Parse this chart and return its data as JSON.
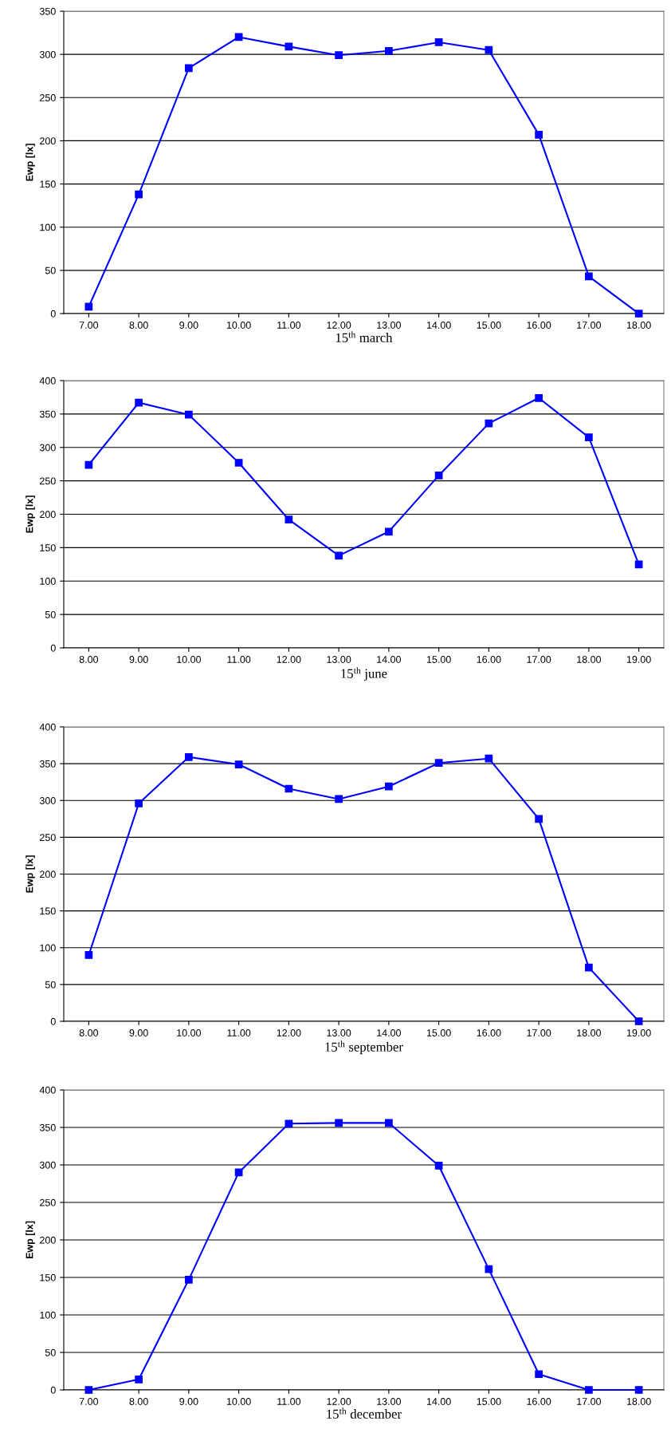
{
  "chart_data": [
    {
      "type": "line",
      "xlabel": "15$^{th}$ march",
      "ylabel": "Ewp [lx]",
      "categories": [
        "7.00",
        "8.00",
        "9.00",
        "10.00",
        "11.00",
        "12.00",
        "13.00",
        "14.00",
        "15.00",
        "16.00",
        "17.00",
        "18.00"
      ],
      "series": [
        {
          "color": "#0000ff",
          "values": [
            8,
            138,
            284,
            320,
            309,
            299,
            304,
            314,
            305,
            207,
            43,
            0
          ]
        }
      ],
      "ylim": [
        0,
        350
      ],
      "yticks": [
        0,
        50,
        100,
        150,
        200,
        250,
        300,
        350
      ],
      "grid": "y",
      "marker": "square",
      "line_style": "solid"
    },
    {
      "type": "line",
      "xlabel": "15$^{th}$ june",
      "ylabel": "Ewp [lx]",
      "categories": [
        "8.00",
        "9.00",
        "10.00",
        "11.00",
        "12.00",
        "13.00",
        "14.00",
        "15.00",
        "16.00",
        "17.00",
        "18.00",
        "19.00"
      ],
      "series": [
        {
          "color": "#0000ff",
          "values": [
            274,
            367,
            349,
            277,
            192,
            138,
            174,
            258,
            336,
            374,
            315,
            125
          ]
        }
      ],
      "ylim": [
        0,
        400
      ],
      "yticks": [
        0,
        50,
        100,
        150,
        200,
        250,
        300,
        350,
        400
      ],
      "grid": "y",
      "marker": "square",
      "line_style": "solid"
    },
    {
      "type": "line",
      "xlabel": "15$^{th}$ september",
      "ylabel": "Ewp [lx]",
      "categories": [
        "8.00",
        "9.00",
        "10.00",
        "11.00",
        "12.00",
        "13.00",
        "14.00",
        "15.00",
        "16.00",
        "17.00",
        "18.00",
        "19.00"
      ],
      "series": [
        {
          "color": "#0000ff",
          "values": [
            90,
            296,
            359,
            349,
            316,
            302,
            319,
            351,
            357,
            275,
            73,
            0
          ]
        }
      ],
      "ylim": [
        0,
        400
      ],
      "yticks": [
        0,
        50,
        100,
        150,
        200,
        250,
        300,
        350,
        400
      ],
      "grid": "y",
      "marker": "square",
      "line_style": "solid"
    },
    {
      "type": "line",
      "xlabel": "15$^{th}$ december",
      "ylabel": "Ewp [lx]",
      "categories": [
        "7.00",
        "8.00",
        "9.00",
        "10.00",
        "11.00",
        "12.00",
        "13.00",
        "14.00",
        "15.00",
        "16.00",
        "17.00",
        "18.00"
      ],
      "series": [
        {
          "color": "#0000ff",
          "values": [
            0,
            14,
            147,
            290,
            355,
            356,
            356,
            299,
            161,
            21,
            0,
            0
          ]
        }
      ],
      "ylim": [
        0,
        400
      ],
      "yticks": [
        0,
        50,
        100,
        150,
        200,
        250,
        300,
        350,
        400
      ],
      "grid": "y",
      "marker": "square",
      "line_style": "solid"
    }
  ]
}
